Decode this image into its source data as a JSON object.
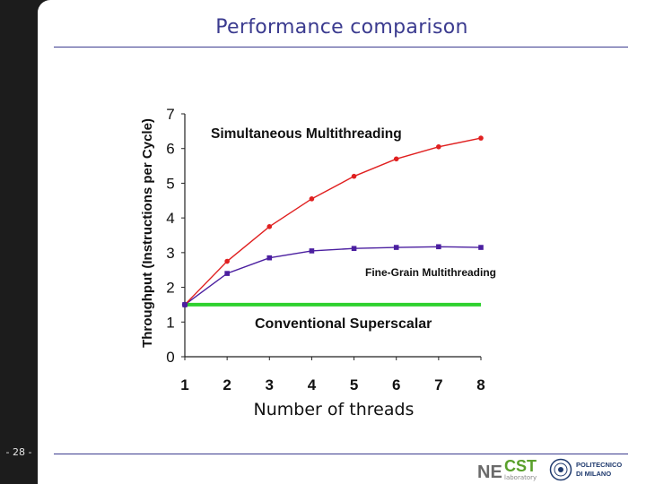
{
  "page": {
    "title": "Performance comparison",
    "page_number": "- 28 -"
  },
  "logos": {
    "necst_ne": "NE",
    "necst_cst": "CST",
    "necst_sub": "laboratory",
    "polimi_line1": "POLITECNICO",
    "polimi_line2": "DI MILANO"
  },
  "chart_data": {
    "type": "line",
    "x": [
      1,
      2,
      3,
      4,
      5,
      6,
      7,
      8
    ],
    "xlabel": "Number of threads",
    "ylabel": "Throughput (Instructions per Cycle)",
    "ylim": [
      0,
      7
    ],
    "xticks": [
      "1",
      "2",
      "3",
      "4",
      "5",
      "6",
      "7",
      "8"
    ],
    "yticks": [
      "0",
      "1",
      "2",
      "3",
      "4",
      "5",
      "6",
      "7"
    ],
    "series": [
      {
        "name": "Simultaneous Multithreading",
        "color": "#e02020",
        "marker": "diamond",
        "values": [
          1.5,
          2.75,
          3.75,
          4.55,
          5.2,
          5.7,
          6.05,
          6.3
        ]
      },
      {
        "name": "Fine-Grain Multithreading",
        "color": "#4b1fa0",
        "marker": "square",
        "values": [
          1.5,
          2.4,
          2.85,
          3.05,
          3.12,
          3.15,
          3.17,
          3.15
        ]
      },
      {
        "name": "Conventional Superscalar",
        "color": "#2ed12e",
        "marker": "none",
        "values": [
          1.5,
          1.5,
          1.5,
          1.5,
          1.5,
          1.5,
          1.5,
          1.5
        ]
      }
    ],
    "grid": false
  }
}
